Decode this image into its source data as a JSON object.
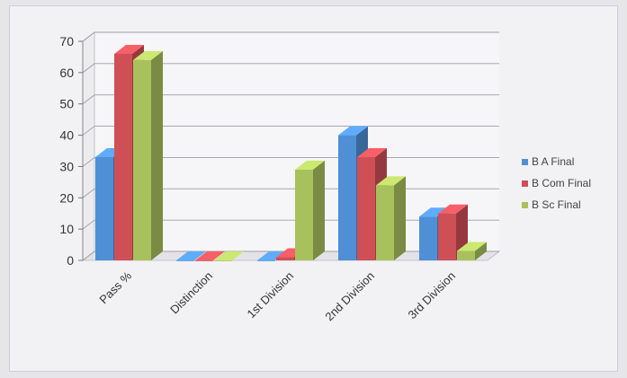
{
  "chart_data": {
    "type": "bar",
    "title": "",
    "xlabel": "",
    "ylabel": "",
    "ylim": [
      0,
      70
    ],
    "yticks": [
      "0",
      "10",
      "20",
      "30",
      "40",
      "50",
      "60",
      "70"
    ],
    "categories": [
      "Pass %",
      "Distinction",
      "1st Division",
      "2nd Division",
      "3rd Division"
    ],
    "series": [
      {
        "name": "B A Final",
        "color": "#4f8fd6",
        "values": [
          33,
          0,
          0,
          40,
          14
        ]
      },
      {
        "name": "B Com Final",
        "color": "#cf4f57",
        "values": [
          66,
          0,
          1,
          33,
          15
        ]
      },
      {
        "name": "B Sc Final",
        "color": "#a9c15d",
        "values": [
          64,
          0,
          29,
          24,
          3
        ]
      }
    ],
    "grid": true,
    "legend_position": "right",
    "style": "3d-clustered-column"
  }
}
